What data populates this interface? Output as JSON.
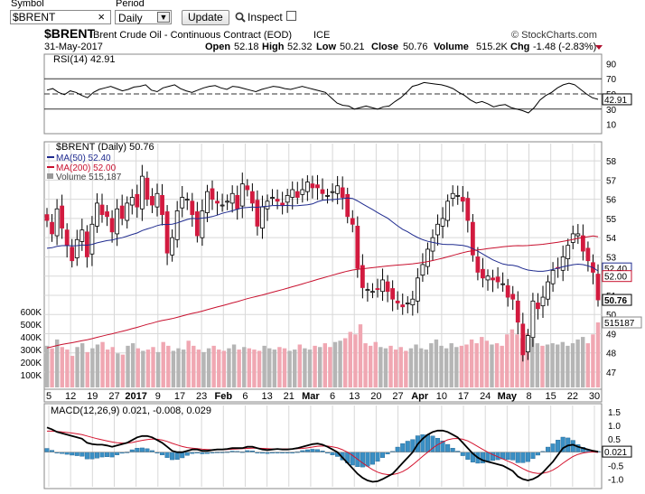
{
  "toolbar": {
    "symbol_label": "Symbol",
    "symbol_value": "$BRENT",
    "period_label": "Period",
    "period_value": "Daily",
    "update_label": "Update",
    "inspect_label": "Inspect",
    "clear_glyph": "×"
  },
  "header": {
    "ticker": "$BRENT",
    "name": "Brent Crude Oil - Continuous Contract (EOD)",
    "exchange": "ICE",
    "date": "31-May-2017",
    "brand": "© StockCharts.com",
    "ohlc": {
      "open_label": "Open",
      "open": "52.18",
      "high_label": "High",
      "high": "52.32",
      "low_label": "Low",
      "low": "50.21",
      "close_label": "Close",
      "close": "50.76",
      "volume_label": "Volume",
      "volume": "515.2K",
      "chg_label": "Chg",
      "chg": "-1.48 (-2.83%)"
    }
  },
  "colors": {
    "up": "#ffffff",
    "down": "#d21a3f",
    "ma50": "#1f2b8f",
    "ma200": "#c8102e",
    "vol_up": "#b5b5b5",
    "vol_down": "#f0a7b2",
    "macd_hist": "#3a8fc4",
    "grid": "#d8d8d8"
  },
  "chart_data": [
    {
      "type": "line",
      "panel": "rsi",
      "title": "RSI(14) 42.91",
      "ylim": [
        0,
        100
      ],
      "yticks": [
        90,
        70,
        50,
        30,
        10
      ],
      "bands": [
        70,
        50,
        30
      ],
      "series": [
        {
          "name": "RSI(14)",
          "values": [
            55,
            57,
            52,
            49,
            54,
            52,
            48,
            45,
            52,
            56,
            58,
            60,
            57,
            54,
            56,
            59,
            60,
            62,
            55,
            53,
            58,
            60,
            62,
            57,
            54,
            52,
            55,
            58,
            60,
            61,
            58,
            56,
            60,
            59,
            57,
            55,
            53,
            56,
            58,
            60,
            59,
            57,
            56,
            58,
            60,
            58,
            56,
            54,
            52,
            45,
            38,
            35,
            34,
            30,
            32,
            34,
            32,
            30,
            33,
            34,
            40,
            45,
            52,
            60,
            62,
            65,
            64,
            63,
            62,
            60,
            57,
            52,
            48,
            42,
            38,
            40,
            37,
            33,
            35,
            36,
            32,
            30,
            28,
            25,
            32,
            42,
            48,
            52,
            58,
            62,
            64,
            62,
            56,
            50,
            45,
            42.91
          ]
        }
      ],
      "last_label": "42.91"
    },
    {
      "type": "bar",
      "panel": "price",
      "title": "$BRENT (Daily) 50.76",
      "legend": [
        "MA(50) 52.40",
        "MA(200) 52.00",
        "Volume 515,187"
      ],
      "ylim": [
        46.2,
        58.9
      ],
      "yticks": [
        47,
        48,
        49,
        50,
        51,
        52,
        53,
        54,
        55,
        56,
        57,
        58
      ],
      "x_tick_labels": [
        "5",
        "12",
        "19",
        "27",
        "2017",
        "9",
        "17",
        "23",
        "Feb",
        "6",
        "13",
        "21",
        "Mar",
        "6",
        "13",
        "20",
        "27",
        "Apr",
        "10",
        "17",
        "24",
        "May",
        "8",
        "15",
        "22",
        "30"
      ],
      "closes": [
        54.9,
        54.2,
        55.5,
        54.5,
        53.6,
        52.8,
        53.9,
        54.4,
        53.0,
        54.7,
        55.8,
        55.2,
        55.1,
        54.3,
        55.5,
        55.0,
        55.8,
        56.1,
        55.6,
        57.2,
        56.0,
        55.7,
        56.3,
        55.2,
        53.2,
        54.0,
        55.4,
        56.1,
        56.0,
        55.2,
        54.1,
        55.4,
        56.4,
        56.0,
        55.8,
        55.7,
        55.9,
        56.3,
        55.5,
        56.8,
        56.5,
        55.8,
        54.6,
        55.6,
        55.9,
        56.1,
        55.9,
        55.7,
        56.2,
        56.5,
        56.1,
        56.5,
        56.9,
        56.6,
        56.6,
        56.3,
        56.2,
        56.4,
        56.7,
        56.1,
        55.1,
        54.7,
        52.4,
        51.4,
        51.3,
        51.2,
        51.3,
        51.8,
        51.2,
        50.8,
        50.6,
        50.4,
        50.6,
        50.8,
        51.9,
        52.6,
        53.4,
        54.0,
        54.7,
        55.0,
        55.9,
        56.3,
        56.2,
        55.9,
        54.9,
        53.1,
        52.2,
        51.9,
        52.0,
        51.8,
        51.7,
        51.6,
        50.9,
        50.8,
        49.6,
        47.9,
        48.9,
        50.7,
        50.3,
        50.9,
        51.7,
        52.3,
        52.4,
        53.0,
        53.6,
        54.2,
        54.2,
        53.3,
        52.8,
        52.2,
        50.76
      ],
      "ma50_last": 52.4,
      "ma200_last": 52.0,
      "price_labels": [
        "52.40",
        "52.00",
        "50.76"
      ]
    },
    {
      "type": "bar",
      "panel": "volume",
      "yticks": [
        "600K",
        "500K",
        "400K",
        "300K",
        "200K",
        "100K"
      ],
      "ylim": [
        0,
        650000
      ],
      "values_k": [
        330,
        310,
        380,
        320,
        300,
        250,
        320,
        350,
        280,
        310,
        340,
        360,
        300,
        320,
        270,
        260,
        330,
        350,
        310,
        290,
        300,
        320,
        280,
        360,
        330,
        290,
        310,
        300,
        370,
        330,
        300,
        280,
        310,
        330,
        300,
        290,
        310,
        340,
        300,
        320,
        310,
        300,
        290,
        330,
        310,
        300,
        320,
        310,
        290,
        300,
        340,
        310,
        300,
        330,
        320,
        350,
        320,
        360,
        370,
        390,
        440,
        420,
        500,
        350,
        330,
        360,
        320,
        310,
        330,
        300,
        320,
        290,
        310,
        340,
        310,
        300,
        350,
        380,
        330,
        310,
        350,
        320,
        330,
        340,
        380,
        350,
        400,
        370,
        340,
        350,
        330,
        420,
        460,
        420,
        390,
        430,
        390,
        350,
        330,
        340,
        350,
        340,
        360,
        330,
        350,
        380,
        400,
        350,
        420,
        515
      ],
      "last_label": "515187"
    },
    {
      "type": "line",
      "panel": "macd",
      "title": "MACD(12,26,9) 0.021, -0.008, 0.029",
      "ylim": [
        -1.25,
        1.7
      ],
      "yticks": [
        1.5,
        1.0,
        0.5,
        0.0,
        -0.5,
        -1.0
      ],
      "series": [
        {
          "name": "MACD",
          "values": [
            0.92,
            0.85,
            0.75,
            0.7,
            0.65,
            0.6,
            0.55,
            0.5,
            0.35,
            0.3,
            0.28,
            0.28,
            0.25,
            0.2,
            0.25,
            0.3,
            0.35,
            0.45,
            0.55,
            0.6,
            0.6,
            0.55,
            0.45,
            0.35,
            0.2,
            0.05,
            0.0,
            0.0,
            0.05,
            0.1,
            0.1,
            0.05,
            0.05,
            0.08,
            0.1,
            0.1,
            0.12,
            0.15,
            0.15,
            0.15,
            0.2,
            0.2,
            0.15,
            0.1,
            0.08,
            0.1,
            0.12,
            0.1,
            0.1,
            0.12,
            0.15,
            0.2,
            0.25,
            0.3,
            0.32,
            0.28,
            0.2,
            0.1,
            0.0,
            -0.2,
            -0.4,
            -0.6,
            -0.8,
            -0.95,
            -1.05,
            -1.1,
            -1.08,
            -1.0,
            -0.9,
            -0.8,
            -0.6,
            -0.4,
            -0.2,
            0.0,
            0.3,
            0.5,
            0.65,
            0.75,
            0.8,
            0.8,
            0.75,
            0.65,
            0.55,
            0.35,
            0.15,
            -0.05,
            -0.2,
            -0.3,
            -0.35,
            -0.4,
            -0.45,
            -0.5,
            -0.6,
            -0.7,
            -0.9,
            -1.0,
            -1.05,
            -1.0,
            -0.9,
            -0.75,
            -0.55,
            -0.35,
            -0.1,
            0.15,
            0.25,
            0.28,
            0.2,
            0.15,
            0.1,
            0.05,
            0.021
          ]
        },
        {
          "name": "Signal",
          "values": [
            0.78,
            0.78,
            0.77,
            0.75,
            0.73,
            0.71,
            0.68,
            0.65,
            0.6,
            0.55,
            0.5,
            0.46,
            0.42,
            0.38,
            0.35,
            0.34,
            0.34,
            0.36,
            0.4,
            0.44,
            0.47,
            0.49,
            0.48,
            0.45,
            0.4,
            0.33,
            0.27,
            0.21,
            0.17,
            0.15,
            0.13,
            0.11,
            0.1,
            0.09,
            0.09,
            0.09,
            0.1,
            0.11,
            0.12,
            0.13,
            0.14,
            0.15,
            0.15,
            0.14,
            0.13,
            0.12,
            0.12,
            0.12,
            0.12,
            0.12,
            0.13,
            0.14,
            0.16,
            0.19,
            0.22,
            0.23,
            0.23,
            0.2,
            0.16,
            0.09,
            0.0,
            -0.12,
            -0.26,
            -0.4,
            -0.53,
            -0.65,
            -0.74,
            -0.8,
            -0.83,
            -0.83,
            -0.79,
            -0.72,
            -0.61,
            -0.47,
            -0.31,
            -0.15,
            0.0,
            0.15,
            0.28,
            0.38,
            0.46,
            0.5,
            0.51,
            0.48,
            0.42,
            0.32,
            0.21,
            0.1,
            0.0,
            -0.09,
            -0.17,
            -0.25,
            -0.33,
            -0.41,
            -0.51,
            -0.61,
            -0.7,
            -0.76,
            -0.79,
            -0.78,
            -0.74,
            -0.66,
            -0.55,
            -0.41,
            -0.28,
            -0.16,
            -0.08,
            -0.03,
            0.0,
            0.01,
            -0.008
          ]
        }
      ],
      "last_label": "0.021"
    }
  ]
}
